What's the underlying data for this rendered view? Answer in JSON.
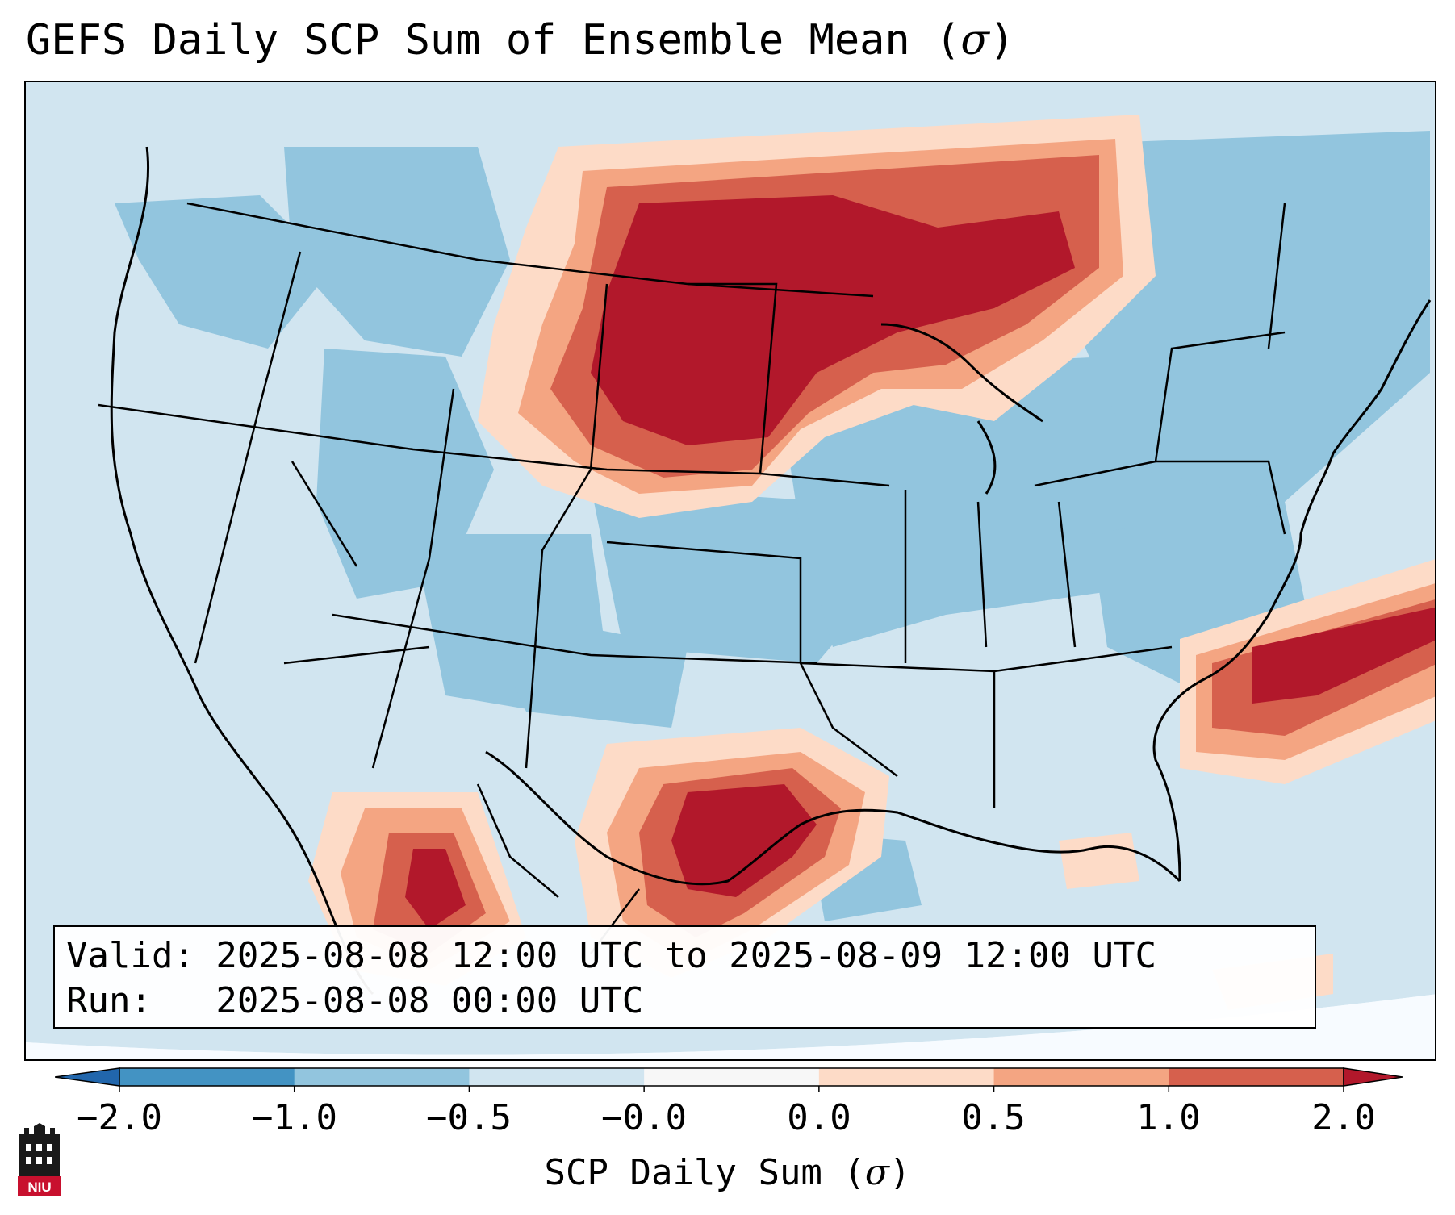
{
  "title": {
    "text": "GEFS Daily SCP Sum of Ensemble Mean (",
    "symbol": "σ",
    "close": ")"
  },
  "info": {
    "valid_line": "Valid: 2025-08-08 12:00 UTC to 2025-08-09 12:00 UTC",
    "run_line": "Run:   2025-08-08 00:00 UTC"
  },
  "colorbar": {
    "label": "SCP Daily Sum (",
    "symbol": "σ",
    "close": ")",
    "ticks": [
      "−2.0",
      "−1.0",
      "−0.5",
      "−0.0",
      "0.0",
      "0.5",
      "1.0",
      "2.0"
    ],
    "bins": [
      {
        "range": "below -2.0",
        "color": "#2166ac"
      },
      {
        "range": "-2.0 to -1.0",
        "color": "#4393c3"
      },
      {
        "range": "-1.0 to -0.5",
        "color": "#92c5de"
      },
      {
        "range": "-0.5 to -0.0",
        "color": "#d1e5f0"
      },
      {
        "range": "-0.0 to 0.0",
        "color": "#f7f7f7"
      },
      {
        "range": "0.0 to 0.5",
        "color": "#fddbc7"
      },
      {
        "range": "0.5 to 1.0",
        "color": "#f4a582"
      },
      {
        "range": "1.0 to 2.0",
        "color": "#d6604d"
      },
      {
        "range": "above 2.0",
        "color": "#b2182b"
      }
    ]
  },
  "logo": {
    "text": "NIU",
    "color": "#c8102e"
  },
  "map": {
    "region": "CONUS",
    "background_color": "#d1e5f0",
    "ocean_color": "#f7fbff",
    "high_anomaly_areas": [
      "Northern Plains / Dakotas",
      "Upper Midwest / Great Lakes",
      "Texas",
      "Northern Mexico",
      "Atlantic off the Carolinas"
    ]
  }
}
